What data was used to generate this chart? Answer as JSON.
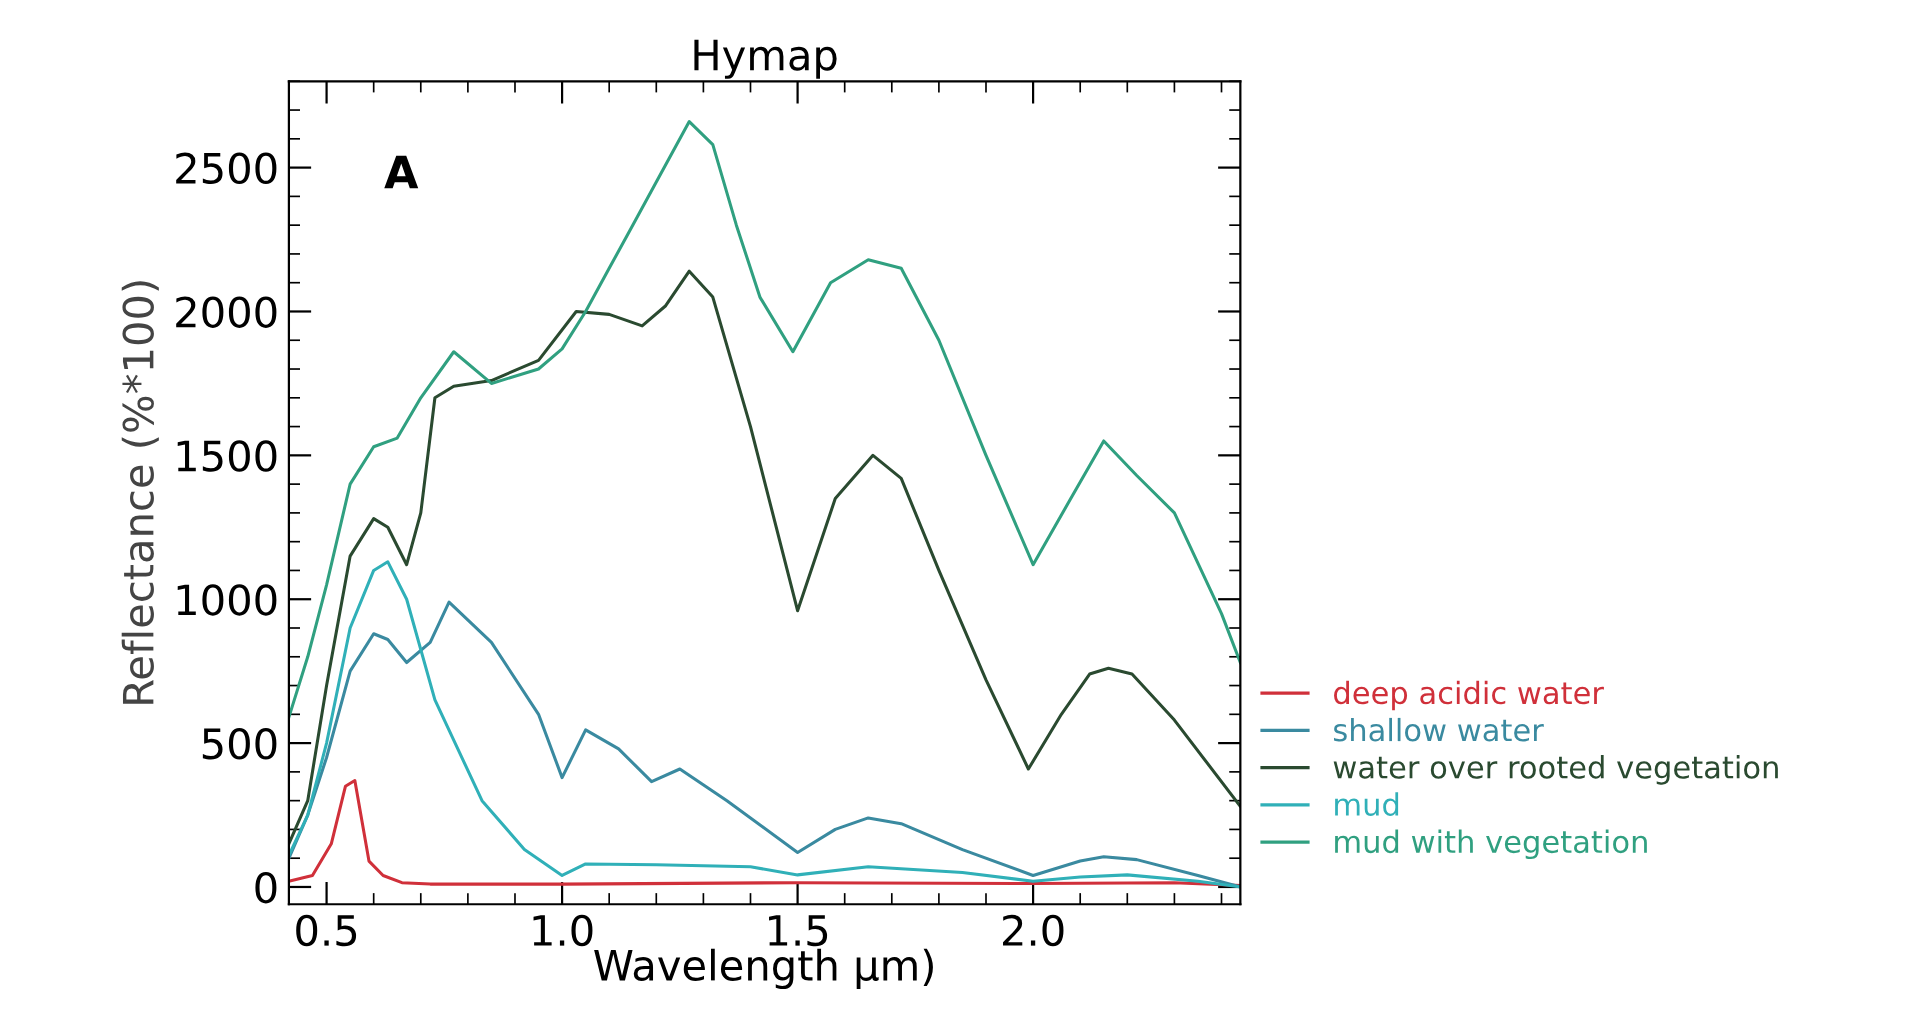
{
  "chart_data": {
    "type": "line",
    "title": "Hymap",
    "xlabel": "Wavelength µm)",
    "ylabel": "Reflectance (%*100)",
    "annotations": [
      "A"
    ],
    "xlim": [
      0.42,
      2.44
    ],
    "ylim": [
      -60,
      2800
    ],
    "xticks": [
      {
        "value": 0.5,
        "label": "0.5"
      },
      {
        "value": 1.0,
        "label": "1.0"
      },
      {
        "value": 1.5,
        "label": "1.5"
      },
      {
        "value": 2.0,
        "label": "2.0"
      }
    ],
    "yticks": [
      0,
      500,
      1000,
      1500,
      2000,
      2500
    ],
    "grid": false,
    "legend": "right",
    "marker": "none",
    "line_style": "solid",
    "series": [
      {
        "name": "deep acidic water",
        "color": "#d0303a",
        "x": [
          0.42,
          0.47,
          0.51,
          0.54,
          0.56,
          0.59,
          0.62,
          0.66,
          0.72,
          1.0,
          1.5,
          2.0,
          2.3,
          2.44
        ],
        "values": [
          20,
          40,
          150,
          350,
          370,
          90,
          40,
          15,
          10,
          10,
          15,
          12,
          15,
          5
        ]
      },
      {
        "name": "shallow water",
        "color": "#3a8aa0",
        "x": [
          0.42,
          0.46,
          0.5,
          0.55,
          0.6,
          0.63,
          0.67,
          0.72,
          0.76,
          0.85,
          0.95,
          1.0,
          1.05,
          1.12,
          1.19,
          1.25,
          1.35,
          1.5,
          1.58,
          1.65,
          1.72,
          1.85,
          2.0,
          2.1,
          2.15,
          2.22,
          2.35,
          2.44
        ],
        "values": [
          100,
          250,
          450,
          750,
          880,
          860,
          780,
          850,
          990,
          850,
          600,
          380,
          546,
          480,
          366,
          410,
          300,
          120,
          200,
          240,
          220,
          130,
          40,
          90,
          105,
          95,
          40,
          0
        ]
      },
      {
        "name": "water over rooted vegetation",
        "color": "#2a4a30",
        "x": [
          0.42,
          0.46,
          0.5,
          0.55,
          0.6,
          0.63,
          0.67,
          0.7,
          0.73,
          0.77,
          0.85,
          0.95,
          1.03,
          1.1,
          1.17,
          1.22,
          1.27,
          1.32,
          1.4,
          1.5,
          1.58,
          1.66,
          1.72,
          1.8,
          1.9,
          1.99,
          2.06,
          2.12,
          2.16,
          2.21,
          2.3,
          2.44
        ],
        "values": [
          150,
          300,
          700,
          1150,
          1280,
          1250,
          1120,
          1300,
          1700,
          1740,
          1760,
          1830,
          2000,
          1990,
          1950,
          2020,
          2140,
          2050,
          1600,
          960,
          1350,
          1500,
          1420,
          1100,
          720,
          410,
          600,
          740,
          760,
          740,
          580,
          280
        ]
      },
      {
        "name": "mud",
        "color": "#30b0b8",
        "x": [
          0.42,
          0.46,
          0.5,
          0.55,
          0.6,
          0.63,
          0.67,
          0.73,
          0.83,
          0.92,
          1.0,
          1.05,
          1.2,
          1.4,
          1.5,
          1.65,
          1.85,
          2.0,
          2.1,
          2.2,
          2.35,
          2.44
        ],
        "values": [
          110,
          250,
          500,
          900,
          1100,
          1130,
          1000,
          650,
          300,
          130,
          40,
          80,
          77,
          70,
          42,
          70,
          50,
          20,
          35,
          42,
          20,
          0
        ]
      },
      {
        "name": "mud with vegetation",
        "color": "#30a080",
        "x": [
          0.42,
          0.46,
          0.5,
          0.55,
          0.6,
          0.65,
          0.7,
          0.77,
          0.85,
          0.95,
          1.0,
          1.05,
          1.1,
          1.15,
          1.2,
          1.27,
          1.32,
          1.37,
          1.42,
          1.49,
          1.57,
          1.65,
          1.72,
          1.8,
          1.9,
          2.0,
          2.08,
          2.15,
          2.22,
          2.3,
          2.4,
          2.44
        ],
        "values": [
          590,
          800,
          1050,
          1400,
          1530,
          1560,
          1700,
          1860,
          1750,
          1800,
          1870,
          2000,
          2150,
          2300,
          2450,
          2660,
          2580,
          2300,
          2050,
          1860,
          2100,
          2180,
          2150,
          1900,
          1500,
          1120,
          1350,
          1550,
          1430,
          1300,
          950,
          780
        ]
      }
    ]
  }
}
